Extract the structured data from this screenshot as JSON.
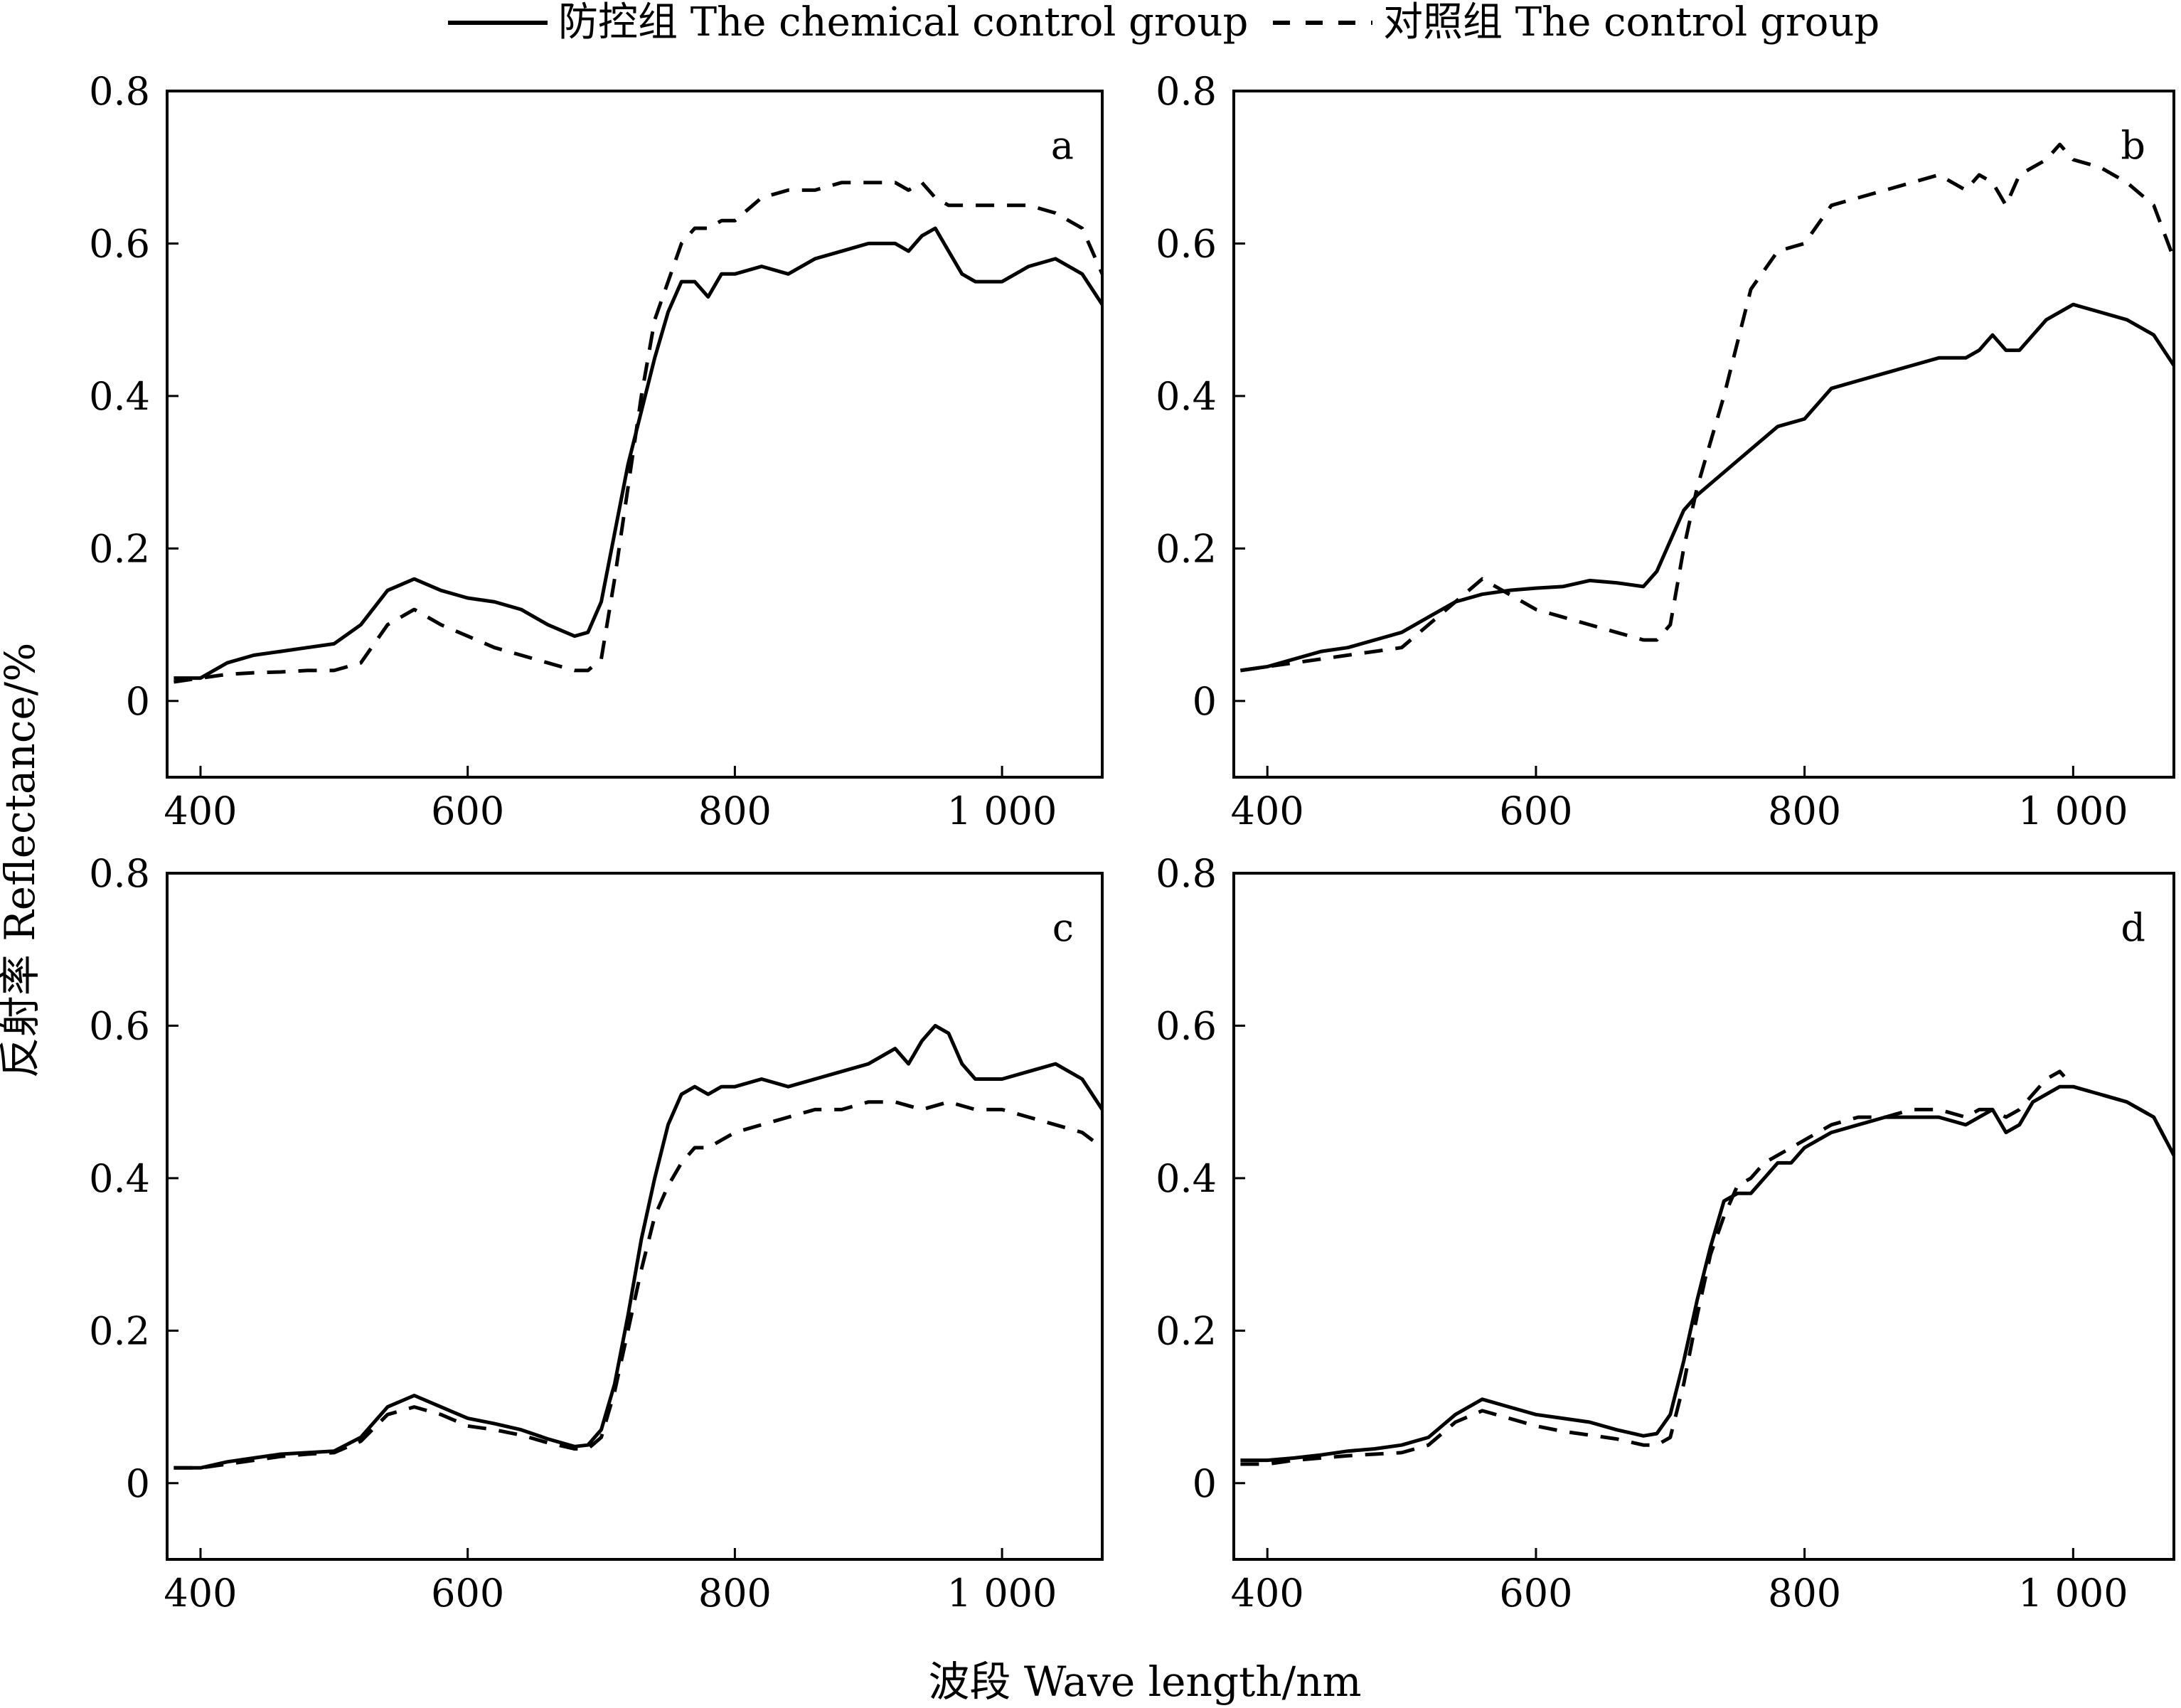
{
  "legend": {
    "solid_label": "防控组 The chemical control group",
    "dashed_label": "对照组 The control group"
  },
  "axes": {
    "xlabel": "波段 Wave length/nm",
    "ylabel": "反射率 Reflectance/%"
  },
  "colors": {
    "line": "#000000",
    "background": "#ffffff"
  },
  "chart_data": [
    {
      "panel": "a",
      "type": "line",
      "xlim": [
        375,
        1075
      ],
      "ylim": [
        -0.1,
        0.8
      ],
      "xticks": [
        400,
        600,
        800,
        1000
      ],
      "xtick_labels": [
        "400",
        "600",
        "800",
        "1 000"
      ],
      "yticks": [
        0,
        0.2,
        0.4,
        0.6,
        0.8
      ],
      "ytick_labels": [
        "0",
        "0.2",
        "0.4",
        "0.6",
        "0.8"
      ],
      "series": [
        {
          "name": "防控组 The chemical control group",
          "style": "solid",
          "x": [
            380,
            400,
            420,
            440,
            460,
            480,
            500,
            520,
            540,
            560,
            580,
            600,
            620,
            640,
            660,
            680,
            690,
            700,
            710,
            720,
            730,
            740,
            750,
            760,
            770,
            780,
            790,
            800,
            820,
            840,
            860,
            880,
            900,
            920,
            930,
            940,
            950,
            960,
            970,
            980,
            990,
            1000,
            1020,
            1040,
            1060,
            1075
          ],
          "y": [
            0.03,
            0.03,
            0.05,
            0.06,
            0.065,
            0.07,
            0.075,
            0.1,
            0.145,
            0.16,
            0.145,
            0.135,
            0.13,
            0.12,
            0.1,
            0.085,
            0.09,
            0.13,
            0.22,
            0.31,
            0.38,
            0.45,
            0.51,
            0.55,
            0.55,
            0.53,
            0.56,
            0.56,
            0.57,
            0.56,
            0.58,
            0.59,
            0.6,
            0.6,
            0.59,
            0.61,
            0.62,
            0.59,
            0.56,
            0.55,
            0.55,
            0.55,
            0.57,
            0.58,
            0.56,
            0.52
          ]
        },
        {
          "name": "对照组 The control group",
          "style": "dashed",
          "x": [
            380,
            400,
            420,
            440,
            460,
            480,
            500,
            520,
            540,
            560,
            580,
            600,
            620,
            640,
            660,
            680,
            690,
            700,
            710,
            720,
            730,
            740,
            750,
            760,
            770,
            780,
            790,
            800,
            820,
            840,
            860,
            880,
            900,
            920,
            930,
            940,
            950,
            960,
            980,
            1000,
            1020,
            1040,
            1060,
            1075
          ],
          "y": [
            0.025,
            0.03,
            0.035,
            0.037,
            0.038,
            0.04,
            0.04,
            0.05,
            0.1,
            0.12,
            0.1,
            0.085,
            0.07,
            0.06,
            0.05,
            0.04,
            0.04,
            0.055,
            0.16,
            0.28,
            0.4,
            0.5,
            0.55,
            0.6,
            0.62,
            0.62,
            0.63,
            0.63,
            0.66,
            0.67,
            0.67,
            0.68,
            0.68,
            0.68,
            0.67,
            0.68,
            0.66,
            0.65,
            0.65,
            0.65,
            0.65,
            0.64,
            0.62,
            0.56
          ]
        }
      ]
    },
    {
      "panel": "b",
      "type": "line",
      "xlim": [
        375,
        1075
      ],
      "ylim": [
        -0.1,
        0.8
      ],
      "xticks": [
        400,
        600,
        800,
        1000
      ],
      "xtick_labels": [
        "400",
        "600",
        "800",
        "1 000"
      ],
      "yticks": [
        0,
        0.2,
        0.4,
        0.6,
        0.8
      ],
      "ytick_labels": [
        "0",
        "0.2",
        "0.4",
        "0.6",
        "0.8"
      ],
      "series": [
        {
          "name": "防控组 The chemical control group",
          "style": "solid",
          "x": [
            380,
            400,
            420,
            440,
            460,
            480,
            500,
            520,
            540,
            560,
            580,
            600,
            620,
            640,
            660,
            680,
            690,
            700,
            710,
            720,
            740,
            760,
            780,
            800,
            820,
            840,
            860,
            880,
            900,
            920,
            930,
            940,
            950,
            960,
            970,
            980,
            990,
            1000,
            1020,
            1040,
            1060,
            1075
          ],
          "y": [
            0.04,
            0.045,
            0.055,
            0.065,
            0.07,
            0.08,
            0.09,
            0.11,
            0.13,
            0.14,
            0.145,
            0.148,
            0.15,
            0.158,
            0.155,
            0.15,
            0.17,
            0.21,
            0.25,
            0.27,
            0.3,
            0.33,
            0.36,
            0.37,
            0.41,
            0.42,
            0.43,
            0.44,
            0.45,
            0.45,
            0.46,
            0.48,
            0.46,
            0.46,
            0.48,
            0.5,
            0.51,
            0.52,
            0.51,
            0.5,
            0.48,
            0.44
          ]
        },
        {
          "name": "对照组 The control group",
          "style": "dashed",
          "x": [
            380,
            400,
            420,
            440,
            460,
            480,
            500,
            520,
            540,
            560,
            570,
            580,
            600,
            620,
            640,
            660,
            680,
            690,
            700,
            710,
            720,
            740,
            760,
            780,
            800,
            820,
            840,
            860,
            880,
            900,
            920,
            930,
            940,
            950,
            960,
            970,
            980,
            990,
            1000,
            1020,
            1040,
            1060,
            1075
          ],
          "y": [
            0.04,
            0.045,
            0.05,
            0.055,
            0.06,
            0.065,
            0.07,
            0.1,
            0.13,
            0.16,
            0.15,
            0.14,
            0.12,
            0.11,
            0.1,
            0.09,
            0.08,
            0.08,
            0.1,
            0.2,
            0.28,
            0.4,
            0.54,
            0.59,
            0.6,
            0.65,
            0.66,
            0.67,
            0.68,
            0.69,
            0.67,
            0.69,
            0.68,
            0.65,
            0.69,
            0.7,
            0.71,
            0.73,
            0.71,
            0.7,
            0.68,
            0.65,
            0.58
          ]
        }
      ]
    },
    {
      "panel": "c",
      "type": "line",
      "xlim": [
        375,
        1075
      ],
      "ylim": [
        -0.1,
        0.8
      ],
      "xticks": [
        400,
        600,
        800,
        1000
      ],
      "xtick_labels": [
        "400",
        "600",
        "800",
        "1 000"
      ],
      "yticks": [
        0,
        0.2,
        0.4,
        0.6,
        0.8
      ],
      "ytick_labels": [
        "0",
        "0.2",
        "0.4",
        "0.6",
        "0.8"
      ],
      "series": [
        {
          "name": "防控组 The chemical control group",
          "style": "solid",
          "x": [
            380,
            400,
            420,
            440,
            460,
            480,
            500,
            520,
            540,
            560,
            580,
            600,
            620,
            640,
            660,
            680,
            690,
            700,
            710,
            720,
            730,
            740,
            750,
            760,
            770,
            780,
            790,
            800,
            820,
            840,
            860,
            880,
            900,
            920,
            930,
            940,
            950,
            960,
            970,
            980,
            990,
            1000,
            1020,
            1040,
            1060,
            1075
          ],
          "y": [
            0.02,
            0.02,
            0.028,
            0.033,
            0.038,
            0.04,
            0.042,
            0.06,
            0.1,
            0.115,
            0.1,
            0.085,
            0.078,
            0.07,
            0.058,
            0.048,
            0.05,
            0.07,
            0.13,
            0.22,
            0.32,
            0.4,
            0.47,
            0.51,
            0.52,
            0.51,
            0.52,
            0.52,
            0.53,
            0.52,
            0.53,
            0.54,
            0.55,
            0.57,
            0.55,
            0.58,
            0.6,
            0.59,
            0.55,
            0.53,
            0.53,
            0.53,
            0.54,
            0.55,
            0.53,
            0.49
          ]
        },
        {
          "name": "对照组 The control group",
          "style": "dashed",
          "x": [
            380,
            400,
            420,
            440,
            460,
            480,
            500,
            520,
            540,
            560,
            580,
            600,
            620,
            640,
            660,
            680,
            690,
            700,
            710,
            720,
            730,
            740,
            750,
            760,
            770,
            780,
            790,
            800,
            820,
            840,
            860,
            880,
            900,
            920,
            940,
            960,
            980,
            1000,
            1020,
            1040,
            1060,
            1075
          ],
          "y": [
            0.02,
            0.02,
            0.025,
            0.03,
            0.035,
            0.038,
            0.04,
            0.055,
            0.09,
            0.1,
            0.09,
            0.075,
            0.07,
            0.063,
            0.053,
            0.045,
            0.045,
            0.06,
            0.12,
            0.2,
            0.28,
            0.35,
            0.39,
            0.42,
            0.44,
            0.44,
            0.45,
            0.46,
            0.47,
            0.48,
            0.49,
            0.49,
            0.5,
            0.5,
            0.49,
            0.5,
            0.49,
            0.49,
            0.48,
            0.47,
            0.46,
            0.44
          ]
        }
      ]
    },
    {
      "panel": "d",
      "type": "line",
      "xlim": [
        375,
        1075
      ],
      "ylim": [
        -0.1,
        0.8
      ],
      "xticks": [
        400,
        600,
        800,
        1000
      ],
      "xtick_labels": [
        "400",
        "600",
        "800",
        "1 000"
      ],
      "yticks": [
        0,
        0.2,
        0.4,
        0.6,
        0.8
      ],
      "ytick_labels": [
        "0",
        "0.2",
        "0.4",
        "0.6",
        "0.8"
      ],
      "series": [
        {
          "name": "防控组 The chemical control group",
          "style": "solid",
          "x": [
            380,
            400,
            420,
            440,
            460,
            480,
            500,
            520,
            540,
            560,
            580,
            600,
            620,
            640,
            660,
            680,
            690,
            700,
            710,
            720,
            730,
            740,
            750,
            760,
            770,
            780,
            790,
            800,
            820,
            840,
            860,
            880,
            900,
            920,
            930,
            940,
            950,
            960,
            970,
            980,
            990,
            1000,
            1020,
            1040,
            1060,
            1075
          ],
          "y": [
            0.03,
            0.03,
            0.033,
            0.037,
            0.042,
            0.045,
            0.05,
            0.06,
            0.09,
            0.11,
            0.1,
            0.09,
            0.085,
            0.08,
            0.07,
            0.062,
            0.065,
            0.09,
            0.16,
            0.24,
            0.31,
            0.37,
            0.38,
            0.38,
            0.4,
            0.42,
            0.42,
            0.44,
            0.46,
            0.47,
            0.48,
            0.48,
            0.48,
            0.47,
            0.48,
            0.49,
            0.46,
            0.47,
            0.5,
            0.51,
            0.52,
            0.52,
            0.51,
            0.5,
            0.48,
            0.43
          ]
        },
        {
          "name": "对照组 The control group",
          "style": "dashed",
          "x": [
            380,
            400,
            420,
            440,
            460,
            480,
            500,
            520,
            540,
            560,
            580,
            600,
            620,
            640,
            660,
            680,
            690,
            700,
            710,
            720,
            730,
            740,
            750,
            760,
            770,
            780,
            790,
            800,
            820,
            840,
            860,
            880,
            900,
            920,
            930,
            940,
            950,
            960,
            970,
            980,
            990,
            1000,
            1020,
            1040,
            1060,
            1075
          ],
          "y": [
            0.025,
            0.025,
            0.03,
            0.033,
            0.036,
            0.038,
            0.04,
            0.05,
            0.08,
            0.095,
            0.085,
            0.075,
            0.068,
            0.063,
            0.058,
            0.05,
            0.05,
            0.06,
            0.13,
            0.22,
            0.3,
            0.35,
            0.39,
            0.4,
            0.42,
            0.43,
            0.44,
            0.45,
            0.47,
            0.48,
            0.48,
            0.49,
            0.49,
            0.48,
            0.49,
            0.49,
            0.48,
            0.49,
            0.51,
            0.53,
            0.54,
            0.52,
            0.51,
            0.5,
            0.48,
            0.43
          ]
        }
      ]
    }
  ]
}
